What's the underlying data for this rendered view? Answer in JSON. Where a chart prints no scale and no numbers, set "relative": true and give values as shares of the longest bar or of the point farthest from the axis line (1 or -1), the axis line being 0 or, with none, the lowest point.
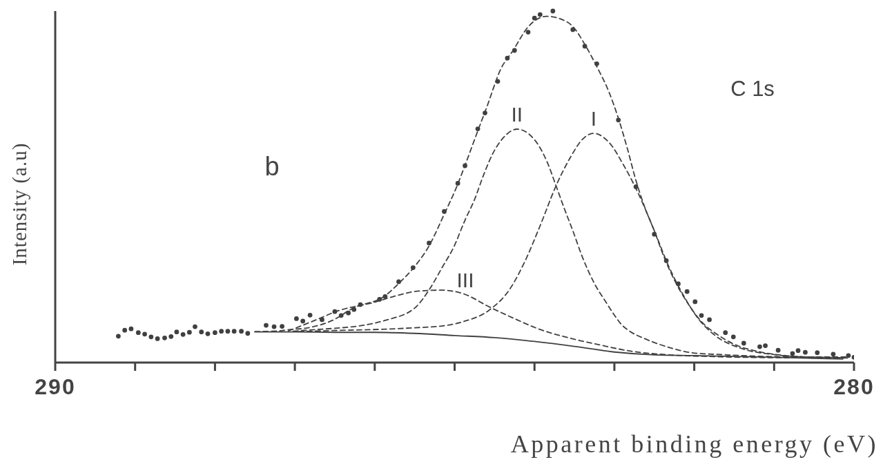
{
  "chart_data": {
    "type": "line",
    "xlabel": "Apparent binding energy (eV)",
    "ylabel": "Intensity (a.u)",
    "annotations": [
      "C 1s",
      "b"
    ],
    "relative": true,
    "grid": false,
    "xlim": [
      290,
      280
    ],
    "xticks": [
      290,
      {
        "value": 289,
        "label": null
      },
      {
        "value": 288,
        "label": null
      },
      {
        "value": 287,
        "label": null
      },
      {
        "value": 286,
        "label": null
      },
      {
        "value": 285,
        "label": null
      },
      {
        "value": 284,
        "label": null
      },
      {
        "value": 283,
        "label": null
      },
      {
        "value": 282,
        "label": null
      },
      {
        "value": 281,
        "label": null
      },
      280
    ],
    "series": [
      {
        "type": "scatter",
        "color": "#404040",
        "marker": "circle",
        "x": [
          289.21,
          289.13,
          289.05,
          288.96,
          288.88,
          288.8,
          288.72,
          288.63,
          288.55,
          288.48,
          288.4,
          288.32,
          288.25,
          288.17,
          288.09,
          288.0,
          287.92,
          287.84,
          287.76,
          287.67,
          287.59,
          287.36,
          287.26,
          287.16,
          286.98,
          286.9,
          286.81,
          286.66,
          286.5,
          286.42,
          286.33,
          286.26,
          286.18,
          285.94,
          285.87,
          285.7,
          285.52,
          285.32,
          285.13,
          284.96,
          284.87,
          284.71,
          284.62,
          284.46,
          284.34,
          284.25,
          284.08,
          284.0,
          283.93,
          283.77,
          283.52,
          283.37,
          283.22,
          282.95,
          282.73,
          282.5,
          282.35,
          282.2,
          282.09,
          281.99,
          281.91,
          281.81,
          281.61,
          281.51,
          281.38,
          281.18,
          281.11,
          280.95,
          280.77,
          280.7,
          280.61,
          280.46,
          280.26,
          280.07,
          280.0
        ],
        "values": [
          0.075,
          0.092,
          0.096,
          0.085,
          0.081,
          0.073,
          0.068,
          0.07,
          0.074,
          0.087,
          0.08,
          0.086,
          0.102,
          0.087,
          0.082,
          0.085,
          0.089,
          0.089,
          0.089,
          0.089,
          0.083,
          0.106,
          0.102,
          0.103,
          0.125,
          0.118,
          0.135,
          0.122,
          0.145,
          0.134,
          0.141,
          0.151,
          0.165,
          0.18,
          0.188,
          0.23,
          0.27,
          0.34,
          0.43,
          0.51,
          0.56,
          0.665,
          0.71,
          0.8,
          0.866,
          0.888,
          0.94,
          0.98,
          0.99,
          1.0,
          0.947,
          0.9,
          0.85,
          0.69,
          0.5,
          0.365,
          0.29,
          0.224,
          0.202,
          0.173,
          0.134,
          0.122,
          0.085,
          0.073,
          0.055,
          0.045,
          0.048,
          0.035,
          0.026,
          0.034,
          0.029,
          0.028,
          0.024,
          0.02,
          0.015
        ]
      },
      {
        "color": "#404040",
        "line_style": "dashed",
        "x": [
          287.5,
          287.2,
          287.06,
          286.86,
          286.53,
          286.27,
          285.87,
          285.7,
          285.52,
          285.32,
          285.13,
          284.98,
          284.87,
          284.71,
          284.6,
          284.42,
          284.27,
          284.08,
          283.85,
          283.67,
          283.52,
          283.37,
          283.22,
          283.07,
          282.95,
          282.84,
          282.73,
          282.62,
          282.5,
          282.39,
          282.24,
          282.09,
          281.9,
          281.72,
          281.49,
          281.19,
          280.82,
          280.44,
          280.11
        ],
        "values": [
          0.088,
          0.09,
          0.094,
          0.098,
          0.12,
          0.155,
          0.19,
          0.225,
          0.268,
          0.332,
          0.422,
          0.497,
          0.561,
          0.659,
          0.725,
          0.836,
          0.887,
          0.955,
          0.985,
          0.977,
          0.956,
          0.905,
          0.842,
          0.771,
          0.695,
          0.611,
          0.518,
          0.442,
          0.375,
          0.307,
          0.231,
          0.172,
          0.114,
          0.081,
          0.051,
          0.031,
          0.019,
          0.015,
          0.014
        ]
      },
      {
        "name": "I",
        "color": "#404040",
        "line_style": "dashed",
        "x": [
          286.95,
          286.53,
          285.87,
          285.5,
          285.16,
          284.87,
          284.58,
          284.3,
          284.12,
          283.93,
          283.73,
          283.55,
          283.4,
          283.26,
          283.07,
          282.88,
          282.69,
          282.5,
          282.32,
          282.13,
          281.94,
          281.76,
          281.38,
          281.01,
          280.63,
          280.1
        ],
        "values": [
          0.088,
          0.091,
          0.095,
          0.099,
          0.104,
          0.118,
          0.147,
          0.212,
          0.288,
          0.389,
          0.503,
          0.584,
          0.635,
          0.652,
          0.627,
          0.56,
          0.476,
          0.375,
          0.274,
          0.189,
          0.122,
          0.081,
          0.038,
          0.023,
          0.016,
          0.014
        ]
      },
      {
        "name": "II",
        "color": "#404040",
        "line_style": "dashed",
        "x": [
          287.02,
          286.86,
          286.53,
          286.2,
          285.87,
          285.5,
          285.31,
          285.16,
          285.01,
          284.87,
          284.75,
          284.64,
          284.53,
          284.38,
          284.22,
          284.0,
          283.85,
          283.73,
          283.63,
          283.52,
          283.4,
          283.25,
          283.1,
          283.0,
          282.91,
          282.8,
          282.62,
          282.3,
          282.03,
          281.6,
          281.2,
          280.6,
          280.07
        ],
        "values": [
          0.089,
          0.092,
          0.097,
          0.104,
          0.12,
          0.155,
          0.21,
          0.269,
          0.329,
          0.405,
          0.464,
          0.532,
          0.591,
          0.642,
          0.664,
          0.634,
          0.575,
          0.503,
          0.44,
          0.375,
          0.3,
          0.225,
          0.17,
          0.135,
          0.108,
          0.088,
          0.068,
          0.042,
          0.028,
          0.022,
          0.018,
          0.016,
          0.016
        ]
      },
      {
        "name": "III",
        "color": "#404040",
        "line_style": "dashed",
        "x": [
          287.08,
          286.74,
          286.45,
          286.03,
          285.7,
          285.47,
          285.16,
          284.87,
          284.58,
          284.27,
          283.93,
          283.55,
          283.18,
          282.81,
          282.32,
          281.76,
          281.01,
          280.05
        ],
        "values": [
          0.09,
          0.121,
          0.148,
          0.17,
          0.192,
          0.203,
          0.206,
          0.194,
          0.16,
          0.127,
          0.094,
          0.069,
          0.05,
          0.033,
          0.022,
          0.017,
          0.014,
          0.013
        ]
      },
      {
        "color": "#404040",
        "line_style": "solid",
        "x": [
          287.5,
          287.0,
          286.5,
          286.0,
          285.5,
          285.0,
          284.5,
          284.0,
          283.5,
          283.0,
          282.5,
          282.0,
          281.0,
          280.14
        ],
        "values": [
          0.087,
          0.087,
          0.086,
          0.086,
          0.083,
          0.077,
          0.071,
          0.06,
          0.046,
          0.03,
          0.022,
          0.02,
          0.015,
          0.01
        ]
      }
    ]
  }
}
